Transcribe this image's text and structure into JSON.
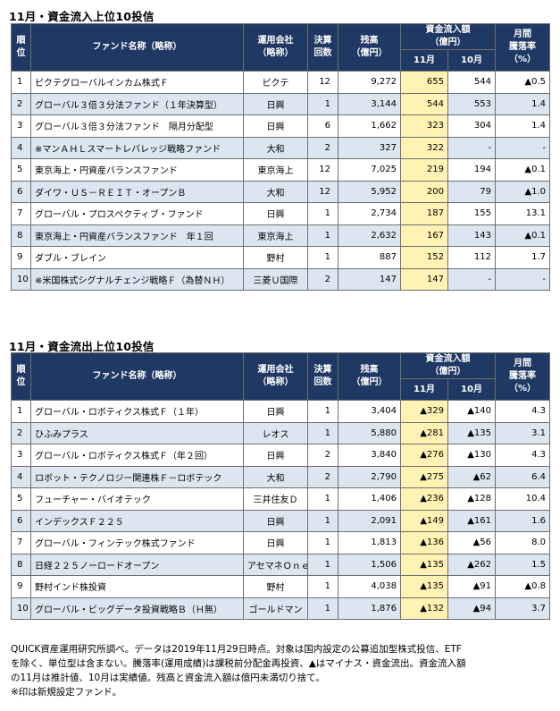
{
  "inflow": {
    "title": "11月・資金流入上位10投信",
    "headers": {
      "rank": "順位",
      "fund": "ファンド名称（略称）",
      "company": "運用会社（略称）",
      "kessan": "決算回数",
      "balance": "残高（億円）",
      "flow": "資金流入額（億円）",
      "nov": "11月",
      "oct": "10月",
      "monthly": "月間騰落率（%）"
    },
    "rows": [
      {
        "rank": "1",
        "fund": "ピクテグローバルインカム株式Ｆ",
        "company": "ピクテ",
        "kessan": "12",
        "balance": "9,272",
        "nov": "655",
        "oct": "544",
        "change": "▲0.5"
      },
      {
        "rank": "2",
        "fund": "グローバル３倍３分法ファンド（１年決算型）",
        "company": "日興",
        "kessan": "1",
        "balance": "3,144",
        "nov": "544",
        "oct": "553",
        "change": "1.4"
      },
      {
        "rank": "3",
        "fund": "グローバル３倍３分法ファンド　隔月分配型",
        "company": "日興",
        "kessan": "6",
        "balance": "1,662",
        "nov": "323",
        "oct": "304",
        "change": "1.4"
      },
      {
        "rank": "4",
        "fund": "※マンＡＨＬスマートレバレッジ戦略ファンド",
        "company": "大和",
        "kessan": "2",
        "balance": "327",
        "nov": "322",
        "oct": "-",
        "change": "-"
      },
      {
        "rank": "5",
        "fund": "東京海上・円資産バランスファンド",
        "company": "東京海上",
        "kessan": "12",
        "balance": "7,025",
        "nov": "219",
        "oct": "194",
        "change": "▲0.1"
      },
      {
        "rank": "6",
        "fund": "ダイワ・ＵＳ－ＲＥＩＴ・オープンＢ",
        "company": "大和",
        "kessan": "12",
        "balance": "5,952",
        "nov": "200",
        "oct": "79",
        "change": "▲1.0"
      },
      {
        "rank": "7",
        "fund": "グローバル・プロスペクティブ・ファンド",
        "company": "日興",
        "kessan": "1",
        "balance": "2,734",
        "nov": "187",
        "oct": "155",
        "change": "13.1"
      },
      {
        "rank": "8",
        "fund": "東京海上・円資産バランスファンド　年１回",
        "company": "東京海上",
        "kessan": "1",
        "balance": "2,632",
        "nov": "167",
        "oct": "143",
        "change": "▲0.1"
      },
      {
        "rank": "9",
        "fund": "ダブル・ブレイン",
        "company": "野村",
        "kessan": "1",
        "balance": "887",
        "nov": "152",
        "oct": "112",
        "change": "1.7"
      },
      {
        "rank": "10",
        "fund": "※米国株式シグナルチェンジ戦略Ｆ（為替ＮＨ）",
        "company": "三菱Ｕ国際",
        "kessan": "2",
        "balance": "147",
        "nov": "147",
        "oct": "-",
        "change": "-"
      }
    ]
  },
  "outflow": {
    "title": "11月・資金流出上位10投信",
    "headers": {
      "rank": "順位",
      "fund": "ファンド名称（略称）",
      "company": "運用会社（略称）",
      "kessan": "決算回数",
      "balance": "残高（億円）",
      "flow": "資金流入額（億円）",
      "nov": "11月",
      "oct": "10月",
      "monthly": "月間騰落率（%）"
    },
    "rows": [
      {
        "rank": "1",
        "fund": "グローバル・ロボティクス株式Ｆ（１年）",
        "company": "日興",
        "kessan": "1",
        "balance": "3,404",
        "nov": "▲329",
        "oct": "▲140",
        "change": "4.3"
      },
      {
        "rank": "2",
        "fund": "ひふみプラス",
        "company": "レオス",
        "kessan": "1",
        "balance": "5,880",
        "nov": "▲281",
        "oct": "▲135",
        "change": "3.1"
      },
      {
        "rank": "3",
        "fund": "グローバル・ロボティクス株式Ｆ（年２回）",
        "company": "日興",
        "kessan": "2",
        "balance": "3,840",
        "nov": "▲276",
        "oct": "▲130",
        "change": "4.3"
      },
      {
        "rank": "4",
        "fund": "ロボット・テクノロジー関連株Ｆ－ロボテック",
        "company": "大和",
        "kessan": "2",
        "balance": "2,790",
        "nov": "▲275",
        "oct": "▲62",
        "change": "6.4"
      },
      {
        "rank": "5",
        "fund": "フューチャー・バイオテック",
        "company": "三井住友Ｄ",
        "kessan": "1",
        "balance": "1,406",
        "nov": "▲236",
        "oct": "▲128",
        "change": "10.4"
      },
      {
        "rank": "6",
        "fund": "インデックスＦ２２５",
        "company": "日興",
        "kessan": "1",
        "balance": "2,091",
        "nov": "▲149",
        "oct": "▲161",
        "change": "1.6"
      },
      {
        "rank": "7",
        "fund": "グローバル・フィンテック株式ファンド",
        "company": "日興",
        "kessan": "1",
        "balance": "1,813",
        "nov": "▲136",
        "oct": "▲56",
        "change": "8.0"
      },
      {
        "rank": "8",
        "fund": "日経２２５ノーロードオープン",
        "company": "アセマネＯｎｅ",
        "kessan": "1",
        "balance": "1,506",
        "nov": "▲135",
        "oct": "▲262",
        "change": "1.5"
      },
      {
        "rank": "9",
        "fund": "野村インド株投資",
        "company": "野村",
        "kessan": "1",
        "balance": "4,038",
        "nov": "▲135",
        "oct": "▲91",
        "change": "▲0.8"
      },
      {
        "rank": "10",
        "fund": "グローバル・ビッグデータ投資戦略Ｂ（Ｈ無）",
        "company": "ゴールドマン",
        "kessan": "1",
        "balance": "1,876",
        "nov": "▲132",
        "oct": "▲94",
        "change": "3.7"
      }
    ]
  },
  "footnote": [
    "QUICK資産運用研究所調べ。データは2019年11月29日時点。対象は国内設定の公募追加型株式投信、ETF",
    "を除く、単位型は含まない。騰落率(運用成績)は課税前分配金再投資、▲はマイナス・資金流出。資金流入額",
    "の11月は推計値、10月は実績値。残高と資金流入額は億円未満切り捨て。",
    "※印は新規設定ファンド。"
  ]
}
